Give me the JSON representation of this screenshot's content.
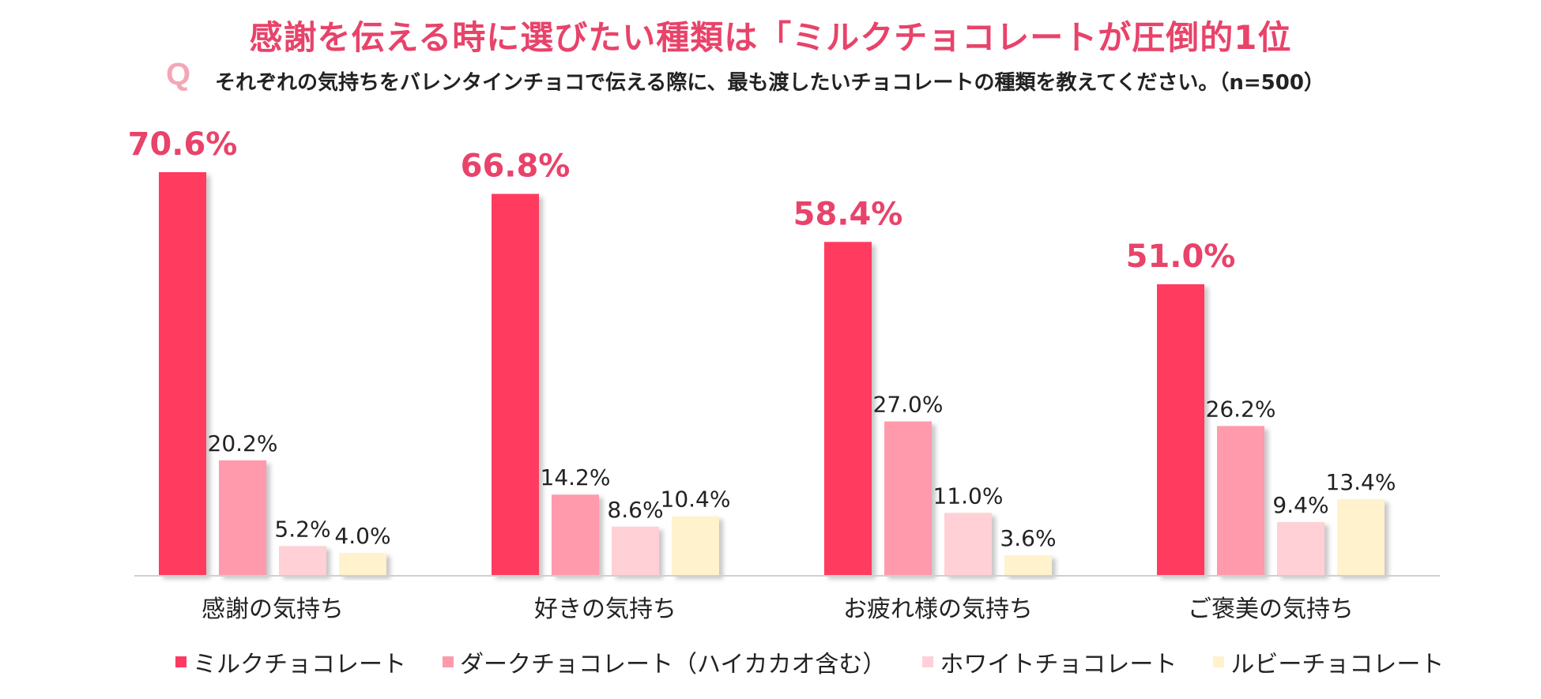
{
  "title": "感謝を伝える時に選びたい種類は「ミルクチョコレートが圧倒的1位",
  "question": {
    "mark": "Q",
    "text": "それぞれの気持ちをバレンタインチョコで伝える際に、最も渡したいチョコレートの種類を教えてください。（n=500）"
  },
  "chart_data": {
    "type": "bar",
    "categories": [
      "感謝の気持ち",
      "好きの気持ち",
      "お疲れ様の気持ち",
      "ご褒美の気持ち"
    ],
    "series": [
      {
        "name": "ミルクチョコレート",
        "color": "#ff3a61",
        "values": [
          70.6,
          66.8,
          58.4,
          51.0
        ],
        "labels": [
          "70.6%",
          "66.8%",
          "58.4%",
          "51.0%"
        ]
      },
      {
        "name": "ダークチョコレート（ハイカカオ含む）",
        "color": "#ff9aac",
        "values": [
          20.2,
          14.2,
          27.0,
          26.2
        ],
        "labels": [
          "20.2%",
          "14.2%",
          "27.0%",
          "26.2%"
        ]
      },
      {
        "name": "ホワイトチョコレート",
        "color": "#ffd0d5",
        "values": [
          5.2,
          8.6,
          11.0,
          9.4
        ],
        "labels": [
          "5.2%",
          "8.6%",
          "11.0%",
          "9.4%"
        ]
      },
      {
        "name": "ルビーチョコレート",
        "color": "#fff2cc",
        "values": [
          4.0,
          10.4,
          3.6,
          13.4
        ],
        "labels": [
          "4.0%",
          "10.4%",
          "3.6%",
          "13.4%"
        ]
      }
    ],
    "ylim": [
      0,
      100
    ],
    "grid": false,
    "legend": "bottom",
    "highlight_label_color": "#e8436a"
  }
}
